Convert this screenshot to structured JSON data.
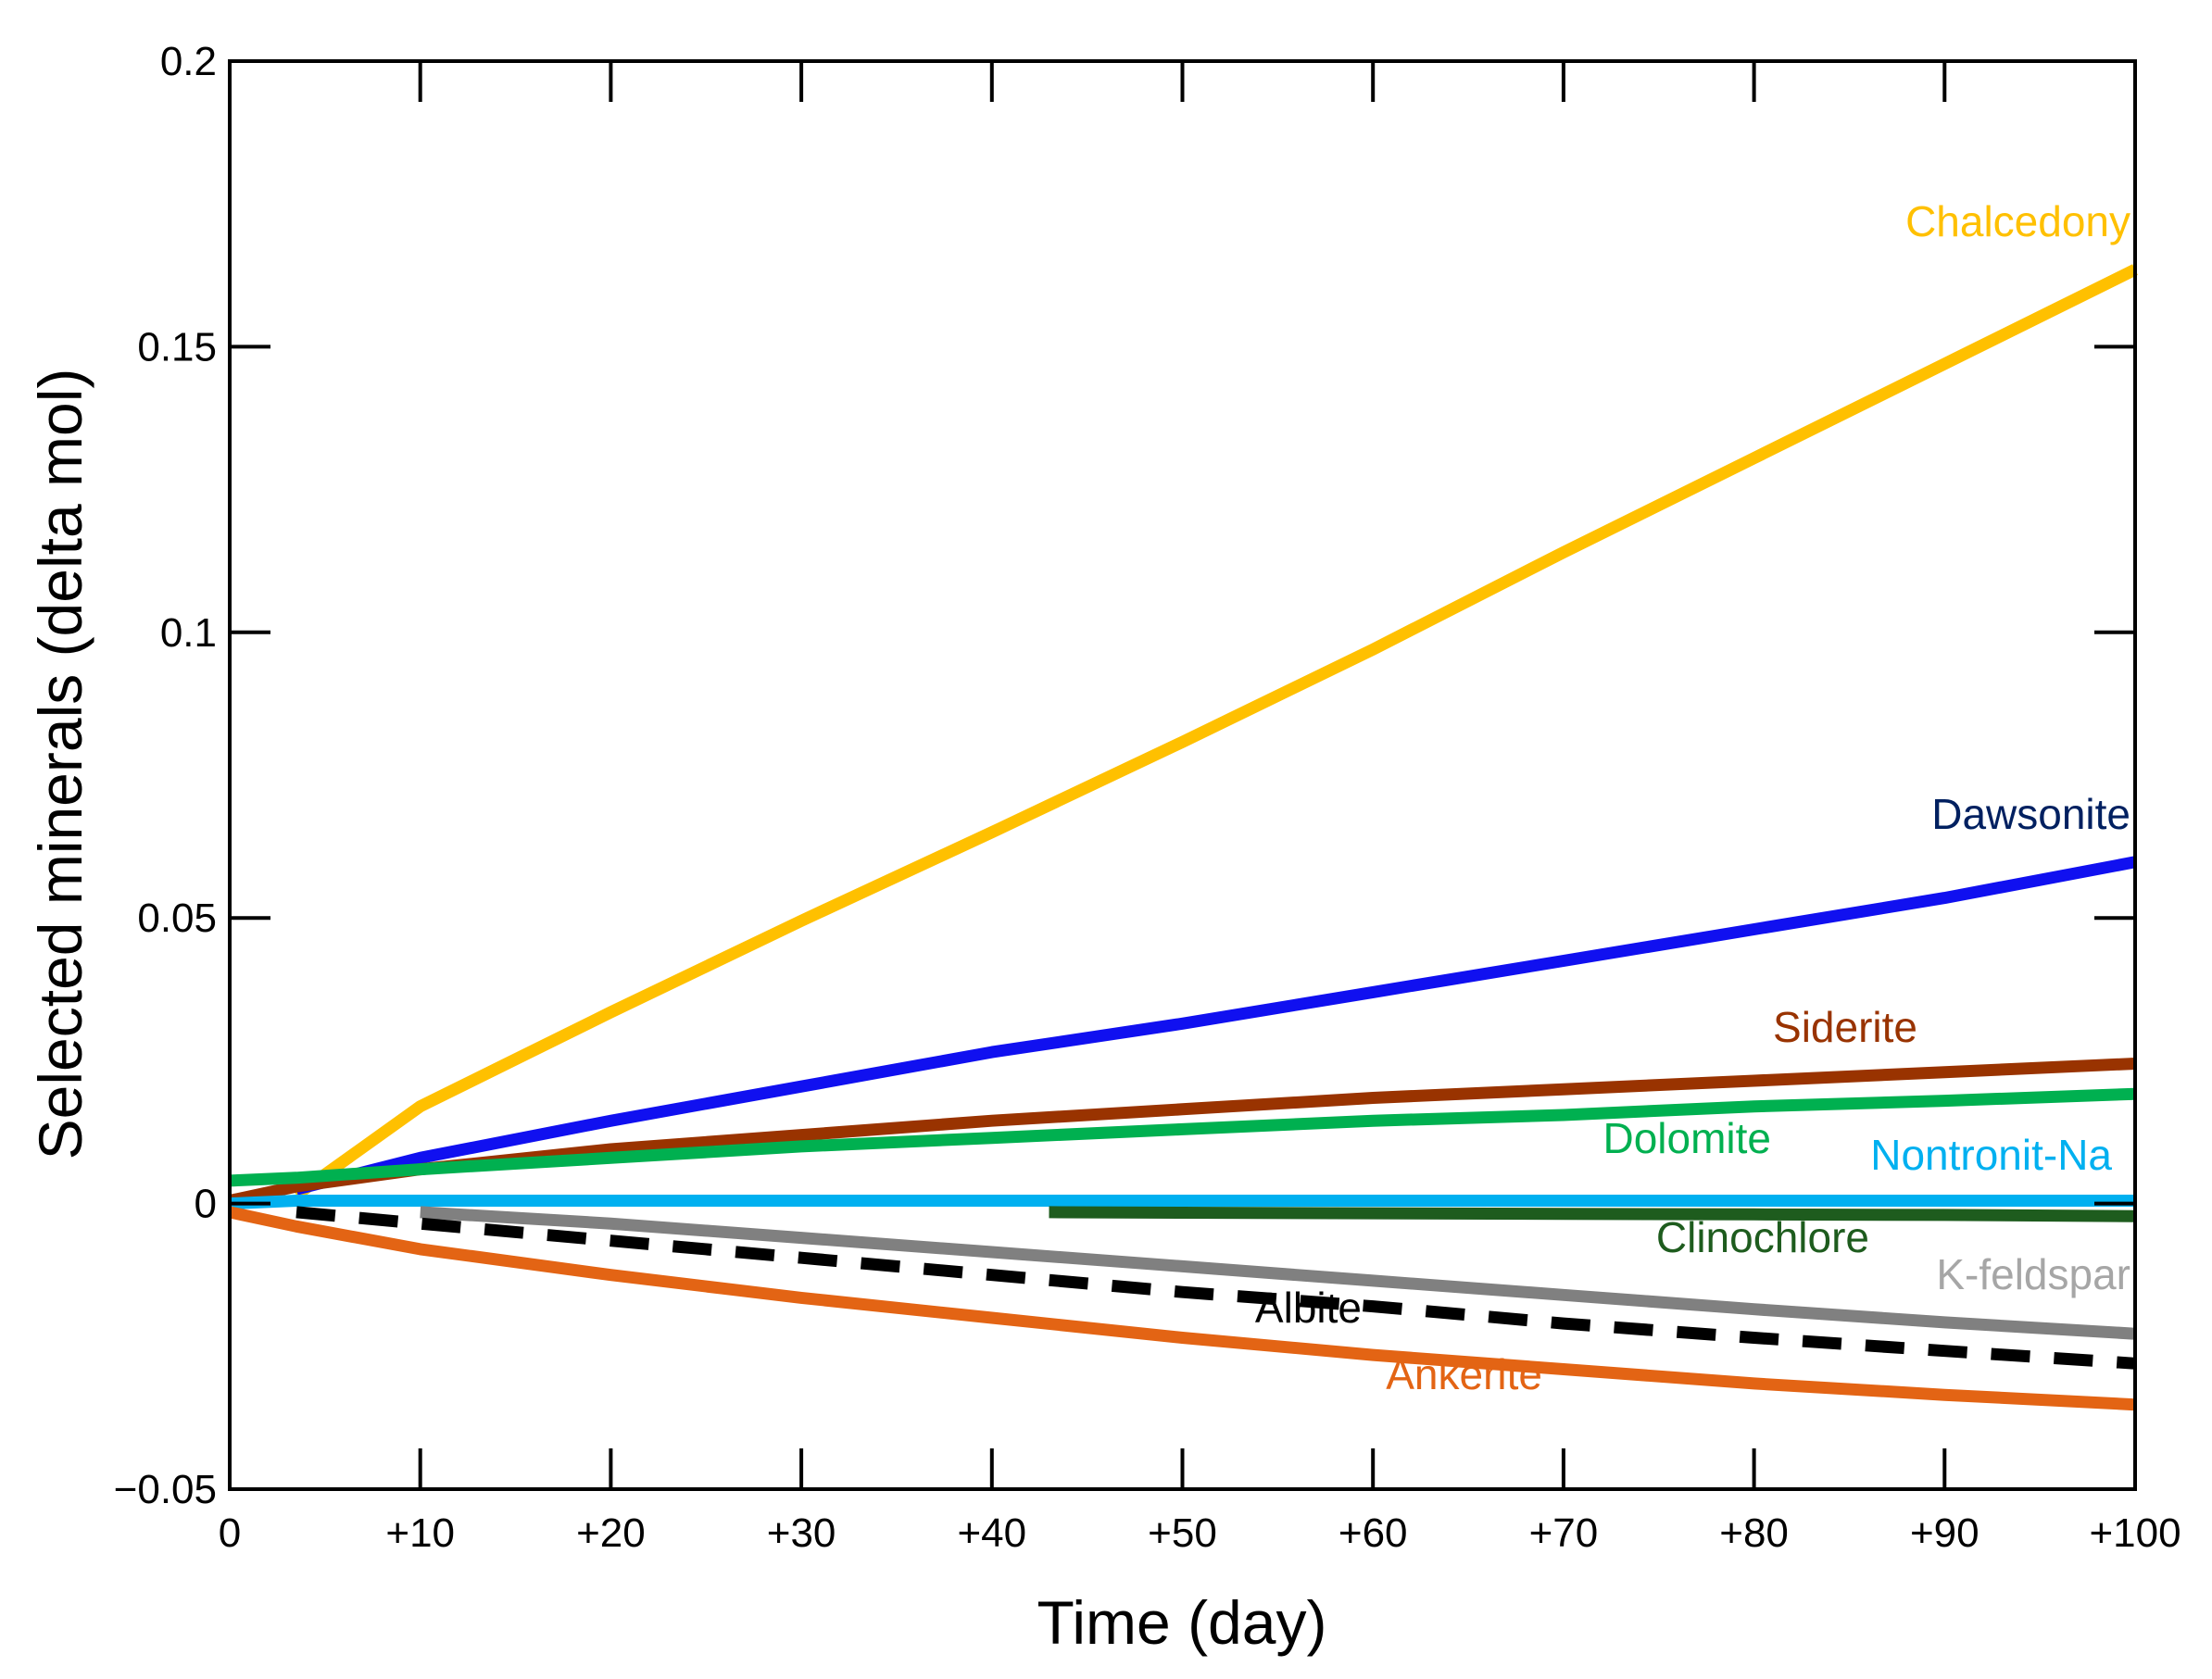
{
  "chart_data": {
    "type": "line",
    "title": "",
    "xlabel": "Time (day)",
    "ylabel": "Selected minerals (delta mol)",
    "xlim": [
      0,
      100
    ],
    "ylim": [
      -0.05,
      0.2
    ],
    "grid": false,
    "x_ticks": [
      0,
      10,
      20,
      30,
      40,
      50,
      60,
      70,
      80,
      90,
      100
    ],
    "x_tick_labels": [
      "0",
      "+10",
      "+20",
      "+30",
      "+40",
      "+50",
      "+60",
      "+70",
      "+80",
      "+90",
      "+100"
    ],
    "y_ticks": [
      -0.05,
      0,
      0.05,
      0.1,
      0.15,
      0.2
    ],
    "y_tick_labels": [
      "−0.05",
      "0",
      "0.05",
      "0.1",
      "0.15",
      "0.2"
    ],
    "series": [
      {
        "name": "Chalcedony",
        "label": "Chalcedony",
        "color": "#FFC000",
        "label_color": "#FFC000",
        "dash": false,
        "x": [
          3.5,
          10,
          20,
          30,
          40,
          50,
          60,
          70,
          80,
          90,
          100
        ],
        "y": [
          0.0015,
          0.017,
          0.0335,
          0.0495,
          0.065,
          0.0808,
          0.097,
          0.114,
          0.1305,
          0.147,
          0.1635
        ]
      },
      {
        "name": "Dawsonite",
        "label": "Dawsonite",
        "color": "#1010F0",
        "label_color": "#002060",
        "dash": false,
        "x": [
          3.5,
          10,
          20,
          30,
          40,
          50,
          60,
          70,
          80,
          90,
          100
        ],
        "y": [
          0.0025,
          0.008,
          0.0145,
          0.0205,
          0.0265,
          0.0315,
          0.037,
          0.0425,
          0.048,
          0.0535,
          0.0598
        ]
      },
      {
        "name": "Siderite",
        "label": "Siderite",
        "color": "#993300",
        "label_color": "#993300",
        "dash": false,
        "x": [
          0,
          3.5,
          10,
          20,
          30,
          40,
          50,
          60,
          70,
          80,
          90,
          100
        ],
        "y": [
          0.0005,
          0.003,
          0.006,
          0.0095,
          0.012,
          0.0145,
          0.0165,
          0.0185,
          0.02,
          0.0215,
          0.023,
          0.0245
        ]
      },
      {
        "name": "Dolomite",
        "label": "Dolomite",
        "color": "#00B050",
        "label_color": "#00B050",
        "dash": false,
        "x": [
          0,
          3.5,
          10,
          20,
          30,
          40,
          50,
          60,
          70,
          80,
          90,
          100
        ],
        "y": [
          0.004,
          0.0045,
          0.006,
          0.008,
          0.01,
          0.0115,
          0.013,
          0.0145,
          0.0155,
          0.017,
          0.018,
          0.0192
        ]
      },
      {
        "name": "Nontronit-Na",
        "label": "Nontronit-Na",
        "color": "#00B0F0",
        "label_color": "#00B0F0",
        "dash": false,
        "x": [
          0,
          3.5,
          10,
          20,
          30,
          40,
          50,
          60,
          70,
          80,
          90,
          100
        ],
        "y": [
          0.0,
          0.0005,
          0.0005,
          0.0005,
          0.0005,
          0.0005,
          0.0005,
          0.0005,
          0.0005,
          0.0005,
          0.0005,
          0.0005
        ]
      },
      {
        "name": "Clinochlore",
        "label": "Clinochlore",
        "color": "#1E5C1E",
        "label_color": "#1E5C1E",
        "dash": false,
        "x": [
          43,
          50,
          60,
          70,
          80,
          90,
          100
        ],
        "y": [
          -0.0015,
          -0.0016,
          -0.0017,
          -0.0018,
          -0.0019,
          -0.002,
          -0.0022
        ]
      },
      {
        "name": "K-feldspar",
        "label": "K-feldspar",
        "color": "#808080",
        "label_color": "#A6A6A6",
        "dash": false,
        "x": [
          10,
          20,
          30,
          40,
          50,
          60,
          70,
          80,
          90,
          100
        ],
        "y": [
          -0.0015,
          -0.0035,
          -0.006,
          -0.0085,
          -0.011,
          -0.0135,
          -0.016,
          -0.0185,
          -0.0208,
          -0.0228
        ]
      },
      {
        "name": "Albite",
        "label": "Albite",
        "color": "#000000",
        "label_color": "#000000",
        "dash": true,
        "x": [
          3.5,
          10,
          20,
          30,
          40,
          50,
          60,
          70,
          80,
          90,
          100
        ],
        "y": [
          -0.0015,
          -0.0035,
          -0.0065,
          -0.0095,
          -0.0125,
          -0.0155,
          -0.018,
          -0.021,
          -0.0235,
          -0.0258,
          -0.028
        ]
      },
      {
        "name": "Ankerite",
        "label": "Ankerite",
        "color": "#E36414",
        "label_color": "#E36414",
        "dash": false,
        "x": [
          0,
          3.5,
          10,
          20,
          30,
          40,
          50,
          60,
          70,
          80,
          90,
          100
        ],
        "y": [
          -0.0015,
          -0.004,
          -0.008,
          -0.0125,
          -0.0165,
          -0.02,
          -0.0235,
          -0.0265,
          -0.029,
          -0.0315,
          -0.0335,
          -0.0352
        ]
      }
    ]
  }
}
